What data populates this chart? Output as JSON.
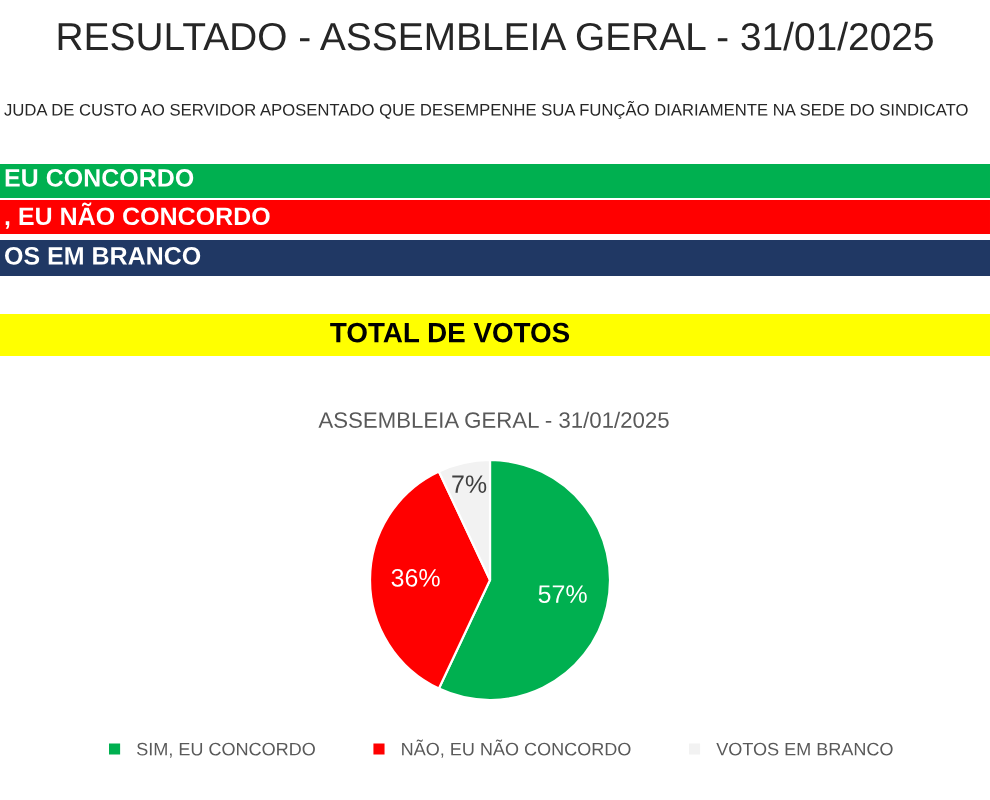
{
  "chart_data": {
    "type": "pie",
    "title": "RESULTADO - ASSEMBLEIA GERAL - 31/01/2025",
    "subtitle": "ASSEMBLEIA GERAL - 31/01/2025",
    "annotations": [
      "JUDA DE CUSTO AO SERVIDOR APOSENTADO QUE DESEMPENHE SUA FUNÇÃO DIARIAMENTE NA SEDE DO SINDICATO",
      "EU CONCORDO",
      ", EU NÃO CONCORDO",
      "OS EM BRANCO",
      "TOTAL DE VOTOS"
    ],
    "categories": [
      "SIM, EU CONCORDO",
      "NÃO, EU NÃO CONCORDO",
      "VOTOS EM BRANCO"
    ],
    "values": [
      57,
      36,
      7
    ],
    "value_labels": [
      "57%",
      "36%",
      "7%"
    ],
    "colors": [
      "#00b050",
      "#ff0000",
      "#f2f2f2"
    ],
    "legend": "bottom"
  }
}
